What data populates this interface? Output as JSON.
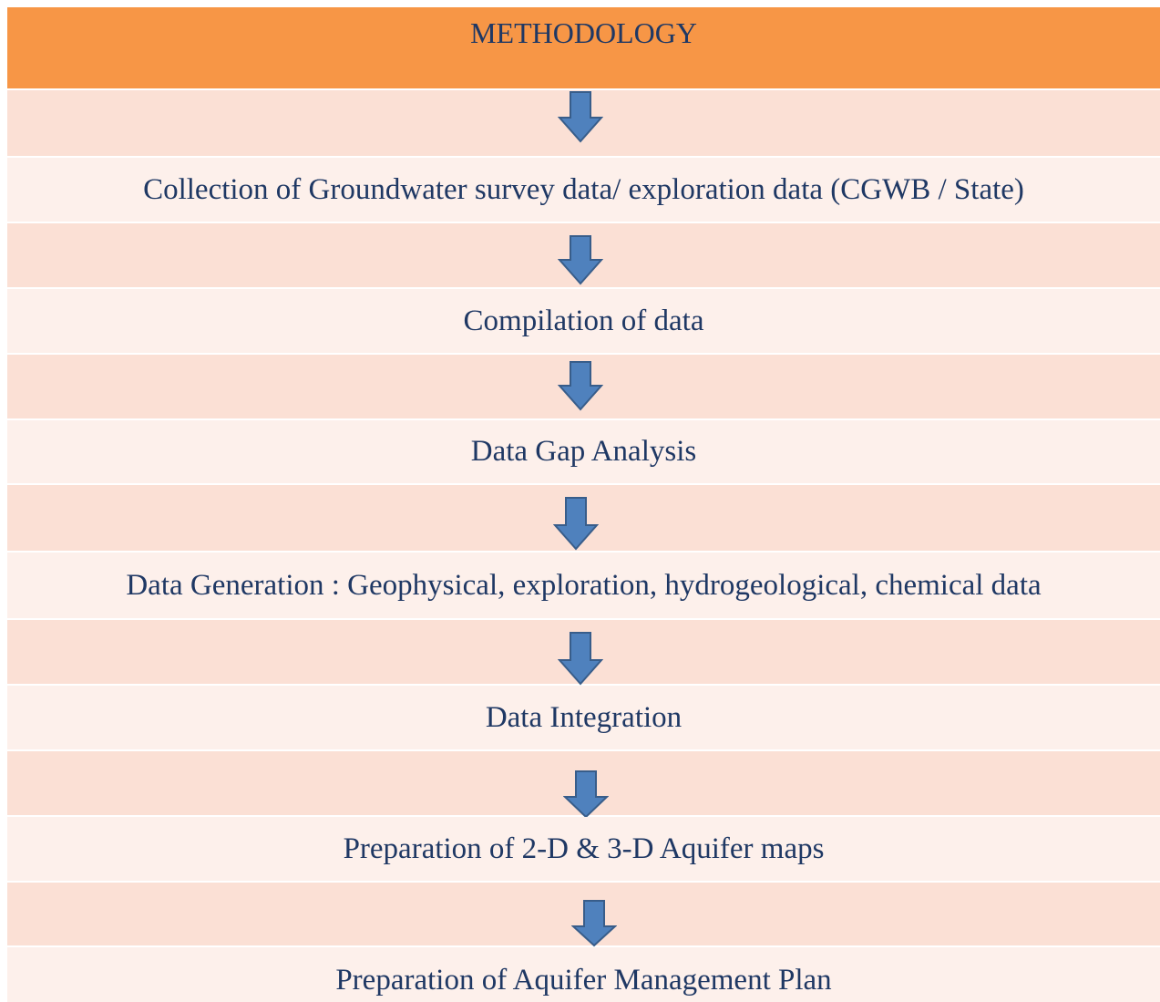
{
  "header": {
    "title": "METHODOLOGY"
  },
  "steps": [
    "Collection of Groundwater survey data/ exploration data (CGWB / State)",
    "Compilation of data",
    "Data Gap Analysis",
    "Data Generation : Geophysical, exploration, hydrogeological, chemical data",
    "Data Integration",
    "Preparation of 2-D & 3-D Aquifer maps",
    "Preparation of Aquifer Management Plan"
  ]
}
